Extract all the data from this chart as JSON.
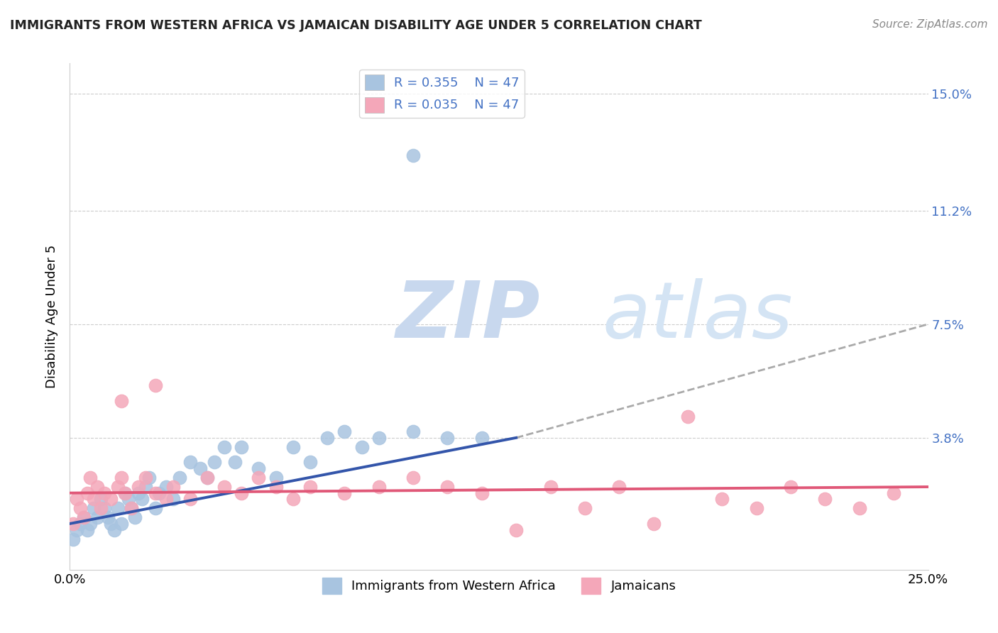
{
  "title": "IMMIGRANTS FROM WESTERN AFRICA VS JAMAICAN DISABILITY AGE UNDER 5 CORRELATION CHART",
  "source": "Source: ZipAtlas.com",
  "xlabel": "",
  "ylabel": "Disability Age Under 5",
  "xlim": [
    0.0,
    0.25
  ],
  "ylim": [
    -0.005,
    0.16
  ],
  "xtick_labels": [
    "0.0%",
    "25.0%"
  ],
  "ytick_labels_right": [
    "3.8%",
    "7.5%",
    "11.2%",
    "15.0%"
  ],
  "ytick_values_right": [
    0.038,
    0.075,
    0.112,
    0.15
  ],
  "legend_R1": "R = 0.355",
  "legend_N1": "N = 47",
  "legend_R2": "R = 0.035",
  "legend_N2": "N = 47",
  "blue_color": "#a8c4e0",
  "blue_line_color": "#3355aa",
  "pink_color": "#f4a7b9",
  "pink_line_color": "#e05878",
  "dashed_line_color": "#aaaaaa",
  "title_color": "#222222",
  "label_color": "#4472c4",
  "watermark_zip_color": "#c8d8ee",
  "watermark_atlas_color": "#c8d8ee",
  "background_color": "#ffffff",
  "blue_scatter_x": [
    0.001,
    0.002,
    0.003,
    0.004,
    0.005,
    0.006,
    0.007,
    0.008,
    0.009,
    0.01,
    0.011,
    0.012,
    0.013,
    0.014,
    0.015,
    0.016,
    0.017,
    0.018,
    0.019,
    0.02,
    0.021,
    0.022,
    0.023,
    0.025,
    0.026,
    0.028,
    0.03,
    0.032,
    0.035,
    0.038,
    0.04,
    0.042,
    0.045,
    0.048,
    0.05,
    0.055,
    0.06,
    0.065,
    0.07,
    0.075,
    0.08,
    0.085,
    0.09,
    0.1,
    0.11,
    0.12,
    0.1
  ],
  "blue_scatter_y": [
    0.005,
    0.008,
    0.01,
    0.012,
    0.008,
    0.01,
    0.015,
    0.012,
    0.018,
    0.015,
    0.012,
    0.01,
    0.008,
    0.015,
    0.01,
    0.02,
    0.018,
    0.015,
    0.012,
    0.02,
    0.018,
    0.022,
    0.025,
    0.015,
    0.02,
    0.022,
    0.018,
    0.025,
    0.03,
    0.028,
    0.025,
    0.03,
    0.035,
    0.03,
    0.035,
    0.028,
    0.025,
    0.035,
    0.03,
    0.038,
    0.04,
    0.035,
    0.038,
    0.04,
    0.038,
    0.038,
    0.13
  ],
  "pink_scatter_x": [
    0.001,
    0.002,
    0.003,
    0.004,
    0.005,
    0.006,
    0.007,
    0.008,
    0.009,
    0.01,
    0.012,
    0.014,
    0.015,
    0.016,
    0.018,
    0.02,
    0.022,
    0.025,
    0.028,
    0.03,
    0.035,
    0.04,
    0.045,
    0.05,
    0.055,
    0.06,
    0.065,
    0.07,
    0.08,
    0.09,
    0.1,
    0.11,
    0.12,
    0.13,
    0.14,
    0.15,
    0.16,
    0.17,
    0.18,
    0.19,
    0.2,
    0.21,
    0.22,
    0.23,
    0.24,
    0.015,
    0.025
  ],
  "pink_scatter_y": [
    0.01,
    0.018,
    0.015,
    0.012,
    0.02,
    0.025,
    0.018,
    0.022,
    0.015,
    0.02,
    0.018,
    0.022,
    0.025,
    0.02,
    0.015,
    0.022,
    0.025,
    0.02,
    0.018,
    0.022,
    0.018,
    0.025,
    0.022,
    0.02,
    0.025,
    0.022,
    0.018,
    0.022,
    0.02,
    0.022,
    0.025,
    0.022,
    0.02,
    0.008,
    0.022,
    0.015,
    0.022,
    0.01,
    0.045,
    0.018,
    0.015,
    0.022,
    0.018,
    0.015,
    0.02,
    0.05,
    0.055
  ],
  "blue_line_x1": 0.0,
  "blue_line_y1": 0.01,
  "blue_line_x2": 0.13,
  "blue_line_y2": 0.038,
  "dashed_line_x1": 0.13,
  "dashed_line_y1": 0.038,
  "dashed_line_x2": 0.25,
  "dashed_line_y2": 0.075,
  "pink_line_x1": 0.0,
  "pink_line_y1": 0.02,
  "pink_line_x2": 0.25,
  "pink_line_y2": 0.022
}
